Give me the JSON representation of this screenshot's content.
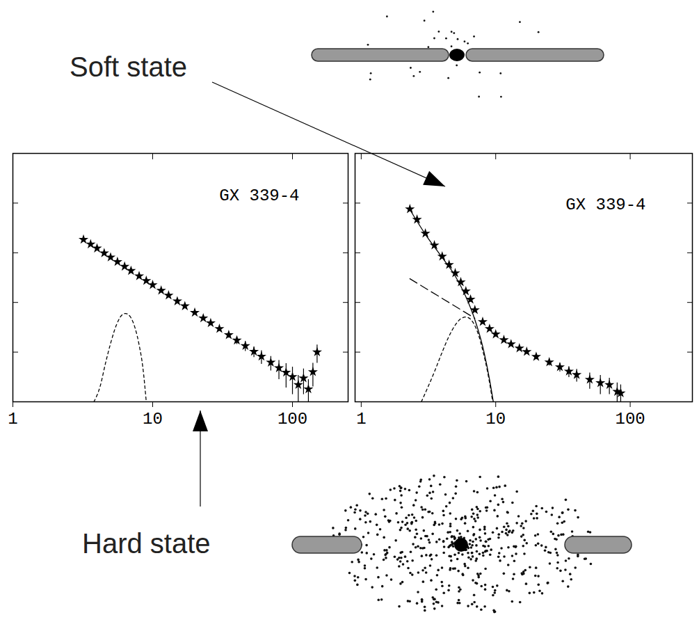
{
  "chart_data": [
    {
      "type": "scatter",
      "title": "GX 339-4",
      "annotation": "Hard state",
      "log": true,
      "xlim": [
        1,
        250
      ],
      "ylim": [
        0.0001,
        10
      ],
      "xticks": [
        1,
        10,
        100
      ],
      "yticks": [
        0.0001,
        0.001,
        0.01,
        0.1,
        1,
        10
      ],
      "tick_labels": "x",
      "series": [
        {
          "type": "scatter",
          "marker": "star",
          "color": "#000000",
          "x": [
            3.2,
            3.6,
            4,
            4.5,
            5,
            5.6,
            6.3,
            7,
            8,
            9,
            10,
            11.5,
            13,
            15,
            17,
            20,
            23,
            26,
            30,
            35,
            40,
            46,
            53,
            60,
            70,
            80,
            90,
            100,
            110,
            120,
            130,
            140,
            150
          ],
          "values": [
            0.185,
            0.149,
            0.123,
            0.0986,
            0.081,
            0.066,
            0.053,
            0.0435,
            0.034,
            0.0274,
            0.0225,
            0.0174,
            0.0139,
            0.0106,
            0.00846,
            0.00625,
            0.00482,
            0.00385,
            0.00295,
            0.00222,
            0.00173,
            0.00134,
            0.00103,
            0.00082,
            0.00062,
            0.00048,
            0.00039,
            0.00032,
            0.00022,
            0.0003,
            0.00018,
            0.0004,
            0.001
          ],
          "errors": [
            0.004,
            0.003,
            0.0025,
            0.002,
            0.0016,
            0.0013,
            0.0011,
            0.0009,
            0.0007,
            0.0006,
            0.0005,
            0.0005,
            0.0004,
            0.0004,
            0.0004,
            0.0004,
            0.0004,
            0.0004,
            0.0003,
            0.0003,
            0.0003,
            0.0003,
            0.00025,
            0.00025,
            0.0002,
            0.0002,
            0.0002,
            0.00018,
            0.00012,
            0.00016,
            0.0001,
            0.0002,
            0.0004
          ]
        },
        {
          "type": "line",
          "line_style": "dotted",
          "color": "#000000",
          "x": [
            3.8,
            4.2,
            4.6,
            5,
            5.5,
            6,
            6.4,
            6.9,
            7.5,
            8,
            8.5,
            9
          ],
          "values": [
            0.0001,
            0.0002,
            0.0006,
            0.0015,
            0.0035,
            0.0055,
            0.006,
            0.0052,
            0.003,
            0.0014,
            0.0005,
            0.0001
          ]
        }
      ]
    },
    {
      "type": "scatter",
      "title": "GX 339-4",
      "annotation": "Soft state",
      "log": true,
      "xlim": [
        0.9,
        290
      ],
      "ylim": [
        0.0001,
        10
      ],
      "xticks": [
        1,
        10,
        100
      ],
      "yticks": [
        0.0001,
        0.001,
        0.01,
        0.1,
        1,
        10
      ],
      "tick_labels": "x",
      "series": [
        {
          "type": "scatter",
          "marker": "star",
          "color": "#000000",
          "x": [
            2.3,
            2.6,
            3,
            3.5,
            4,
            4.5,
            5,
            5.5,
            6,
            6.5,
            7,
            8,
            9,
            10,
            11.5,
            13,
            15,
            17,
            20,
            25,
            30,
            35,
            40,
            50,
            60,
            70,
            80,
            85
          ],
          "values": [
            0.759,
            0.467,
            0.245,
            0.142,
            0.0845,
            0.0574,
            0.039,
            0.0256,
            0.0169,
            0.0115,
            0.00706,
            0.00408,
            0.00296,
            0.00229,
            0.00176,
            0.00145,
            0.0012,
            0.00102,
            0.00081,
            0.00063,
            0.0005,
            0.00041,
            0.00035,
            0.00028,
            0.00024,
            0.00022,
            0.00016,
            0.00015
          ],
          "errors": [
            0.015,
            0.009,
            0.005,
            0.003,
            0.002,
            0.0013,
            0.0009,
            0.0006,
            0.0004,
            0.0003,
            0.0002,
            0.00012,
            0.0001,
            0.0001,
            0.0001,
            0.0001,
            0.0001,
            0.0001,
            0.0001,
            0.0001,
            0.0001,
            0.0001,
            0.0001,
            0.0001,
            0.0001,
            8e-05,
            8e-05,
            7e-05
          ]
        },
        {
          "type": "line",
          "line_style": "solid",
          "color": "#000000",
          "x": [
            2.3,
            3,
            4,
            5,
            6,
            7,
            8,
            9,
            9.6
          ],
          "values": [
            0.74,
            0.235,
            0.08,
            0.034,
            0.013,
            0.0045,
            0.0013,
            0.00028,
            0.0001
          ]
        },
        {
          "type": "line",
          "line_style": "dashed",
          "color": "#000000",
          "x": [
            2.3,
            7
          ],
          "values": [
            0.03,
            0.0048
          ]
        },
        {
          "type": "line",
          "line_style": "dotted",
          "color": "#000000",
          "x": [
            2.8,
            3.5,
            4,
            4.5,
            5,
            5.5,
            6,
            6.5,
            7,
            7.5,
            8,
            8.7,
            9.5
          ],
          "values": [
            0.0001,
            0.0004,
            0.001,
            0.0021,
            0.0035,
            0.0047,
            0.0051,
            0.0046,
            0.0034,
            0.0021,
            0.0011,
            0.0004,
            0.0001
          ]
        }
      ]
    }
  ]
}
